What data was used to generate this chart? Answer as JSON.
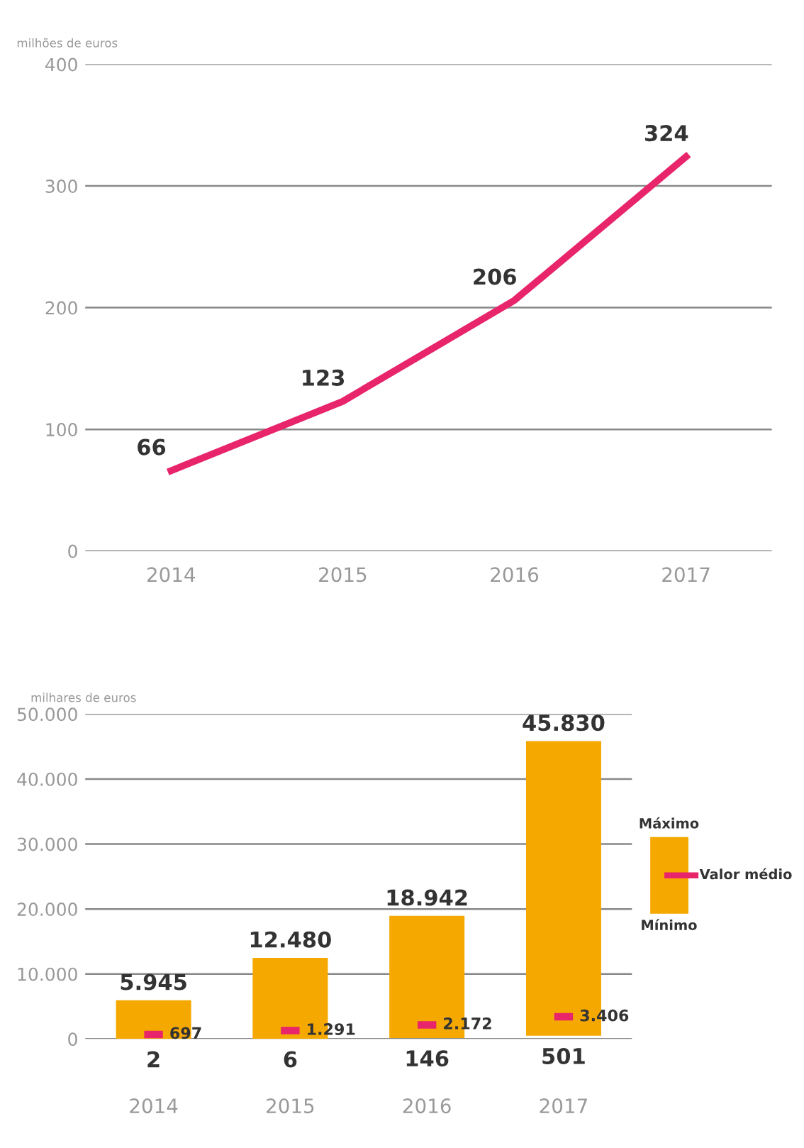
{
  "chart_data": [
    {
      "type": "line",
      "ylabel": "milhões de euros",
      "categories": [
        "2014",
        "2015",
        "2016",
        "2017"
      ],
      "series": [
        {
          "color": "#e8246a",
          "values": [
            66,
            123,
            206,
            324
          ]
        }
      ],
      "ylim": [
        0,
        400
      ],
      "yticks": [
        0,
        100,
        200,
        300,
        400
      ],
      "grid": "y",
      "data_labels": true,
      "marker": "none",
      "line_style": "solid"
    },
    {
      "type": "bar",
      "ylabel": "milhares de euros",
      "categories": [
        "2014",
        "2015",
        "2016",
        "2017"
      ],
      "series": [
        {
          "type": "bar",
          "color": "#f5a800",
          "base": [
            2,
            6,
            146,
            501
          ],
          "values": [
            5943,
            12474,
            18796,
            45329
          ],
          "value_labels": [
            "5.945",
            "12.480",
            "18.942",
            "45.830"
          ]
        },
        {
          "type": "scatter",
          "color": "#e8246a",
          "values": [
            697,
            1291,
            2172,
            3406
          ],
          "value_labels": [
            "697",
            "1.291",
            "2.172",
            "3.406"
          ]
        }
      ],
      "ylim": [
        0,
        50000
      ],
      "yticks": [
        {
          "value": 0,
          "label": "0"
        },
        {
          "value": 10000,
          "label": "10.000"
        },
        {
          "value": 20000,
          "label": "20.000"
        },
        {
          "value": 30000,
          "label": "30.000"
        },
        {
          "value": 40000,
          "label": "40.000"
        },
        {
          "value": 50000,
          "label": "50.000"
        }
      ],
      "grid": "y",
      "annotations": [
        "Máximo",
        "Valor médio",
        "Mínimo",
        {
          "text": "2",
          "x": "2014",
          "y": 2
        },
        {
          "text": "6",
          "x": "2015",
          "y": 6
        },
        {
          "text": "146",
          "x": "2016",
          "y": 146
        },
        {
          "text": "501",
          "x": "2017",
          "y": 501
        }
      ]
    }
  ]
}
